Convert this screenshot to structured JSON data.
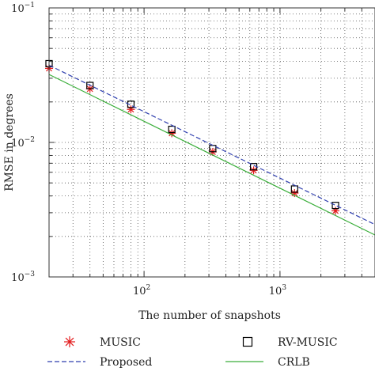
{
  "chart_data": {
    "type": "line",
    "title": "",
    "xlabel": "The number of snapshots",
    "ylabel": "RMSE in degrees",
    "xscale": "log",
    "yscale": "log",
    "xlim": [
      20,
      5000
    ],
    "ylim": [
      0.001,
      0.1
    ],
    "grid": true,
    "x_tick_labels": [
      {
        "value": 100,
        "base": "10",
        "exp": "2"
      },
      {
        "value": 1000,
        "base": "10",
        "exp": "3"
      }
    ],
    "y_tick_labels": [
      {
        "value": 0.001,
        "base": "10",
        "exp": "−3"
      },
      {
        "value": 0.01,
        "base": "10",
        "exp": "−2"
      },
      {
        "value": 0.1,
        "base": "10",
        "exp": "−1"
      }
    ],
    "legend_position": "bottom",
    "series": [
      {
        "name": "MUSIC",
        "marker": "asterisk",
        "line": "none",
        "color": "#e31a1c",
        "x": [
          20,
          40,
          80,
          160,
          320,
          640,
          1280,
          2560
        ],
        "y": [
          0.0355,
          0.025,
          0.0176,
          0.0117,
          0.0085,
          0.0062,
          0.0042,
          0.0031
        ]
      },
      {
        "name": "RV-MUSIC",
        "marker": "square",
        "line": "none",
        "color": "#000000",
        "x": [
          20,
          40,
          80,
          160,
          320,
          640,
          1280,
          2560
        ],
        "y": [
          0.0385,
          0.0265,
          0.0192,
          0.0125,
          0.009,
          0.0066,
          0.0045,
          0.0034
        ]
      },
      {
        "name": "Proposed",
        "marker": "none",
        "line": "dashed",
        "color": "#2f3fae",
        "x": [
          20,
          5000
        ],
        "y": [
          0.0375,
          0.00245
        ]
      },
      {
        "name": "CRLB",
        "marker": "none",
        "line": "solid",
        "color": "#3aae3a",
        "x": [
          20,
          5000
        ],
        "y": [
          0.032,
          0.00205
        ]
      }
    ]
  }
}
